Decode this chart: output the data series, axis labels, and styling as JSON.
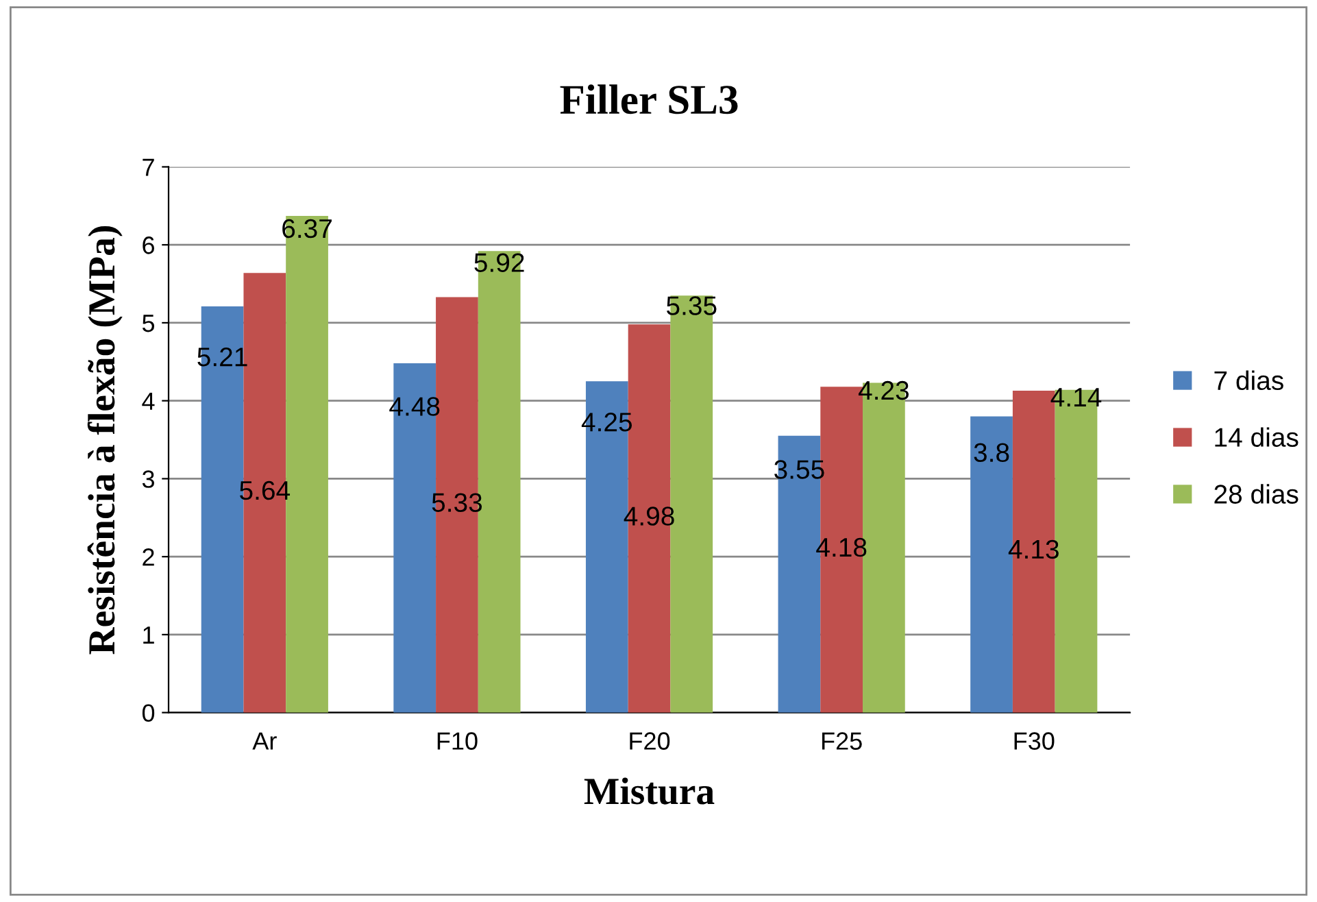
{
  "chart_data": {
    "type": "bar",
    "title": "Filler SL3",
    "xlabel": "Mistura",
    "ylabel": "Resistência à flexão (MPa)",
    "categories": [
      "Ar",
      "F10",
      "F20",
      "F25",
      "F30"
    ],
    "series": [
      {
        "name": "7 dias",
        "color": "#4f81bd",
        "values": [
          5.21,
          4.48,
          4.25,
          3.55,
          3.8
        ]
      },
      {
        "name": "14 dias",
        "color": "#c0504d",
        "values": [
          5.64,
          5.33,
          4.98,
          4.18,
          4.13
        ]
      },
      {
        "name": "28 dias",
        "color": "#9bbb59",
        "values": [
          6.37,
          5.92,
          5.35,
          4.23,
          4.14
        ]
      }
    ],
    "ylim": [
      0,
      7
    ],
    "yticks": [
      0,
      1,
      2,
      3,
      4,
      5,
      6,
      7
    ],
    "grid": "y",
    "legend": "right",
    "data_labels": true
  }
}
